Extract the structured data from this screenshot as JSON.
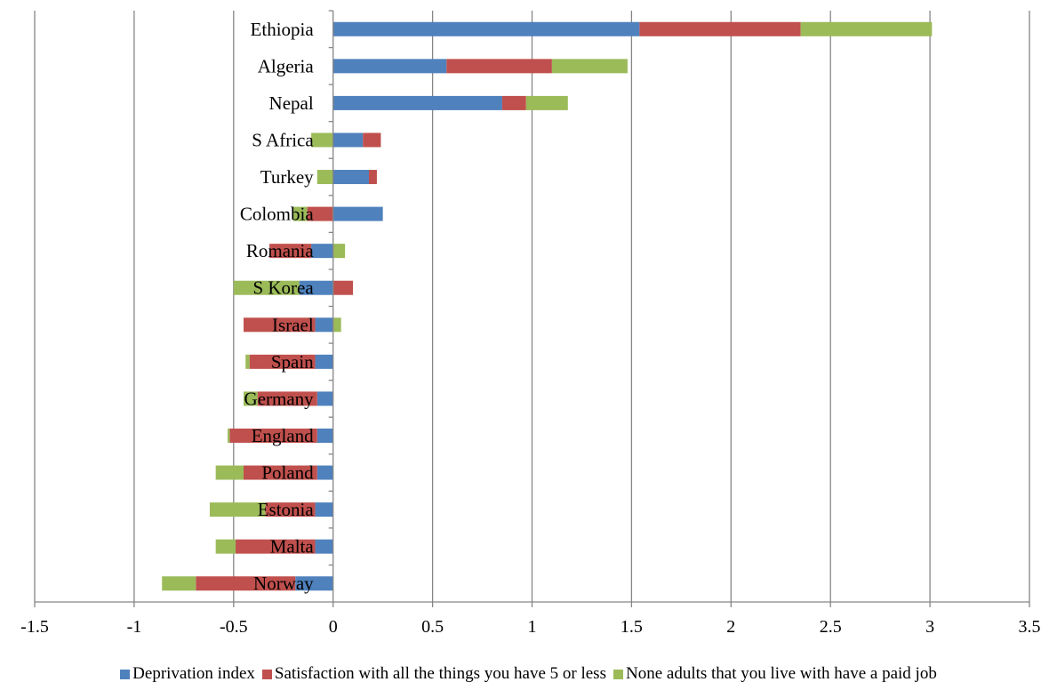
{
  "chart_data": {
    "type": "bar",
    "orientation": "horizontal",
    "stacked": true,
    "title": "",
    "xlabel": "",
    "ylabel": "",
    "xlim": [
      -1.5,
      3.5
    ],
    "xticks": [
      "-1.5",
      "-1",
      "-0.5",
      "0",
      "0.5",
      "1",
      "1.5",
      "2",
      "2.5",
      "3",
      "3.5"
    ],
    "grid": "vertical",
    "legend_position": "bottom",
    "categories": [
      "Ethiopia",
      "Algeria",
      "Nepal",
      "S Africa",
      "Turkey",
      "Colombia",
      "Romania",
      "S Korea",
      "Israel",
      "Spain",
      "Germany",
      "England",
      "Poland",
      "Estonia",
      "Malta",
      "Norway"
    ],
    "series": [
      {
        "name": "Deprivation index",
        "color": "#4F81BD",
        "values": [
          1.54,
          0.57,
          0.85,
          0.15,
          0.18,
          0.25,
          -0.11,
          -0.17,
          -0.09,
          -0.09,
          -0.08,
          -0.08,
          -0.08,
          -0.09,
          -0.09,
          -0.19
        ]
      },
      {
        "name": "Satisfaction with all the things you have 5 or less",
        "color": "#C0504D",
        "values": [
          0.81,
          0.53,
          0.12,
          0.09,
          0.04,
          -0.13,
          -0.21,
          0.1,
          -0.36,
          -0.33,
          -0.3,
          -0.44,
          -0.37,
          -0.25,
          -0.4,
          -0.5
        ]
      },
      {
        "name": "None adults that you live with have a paid job",
        "color": "#9BBB59",
        "values": [
          0.66,
          0.38,
          0.21,
          -0.11,
          -0.08,
          -0.07,
          0.06,
          -0.33,
          0.04,
          -0.02,
          -0.07,
          -0.01,
          -0.14,
          -0.28,
          -0.1,
          -0.17
        ]
      }
    ]
  }
}
